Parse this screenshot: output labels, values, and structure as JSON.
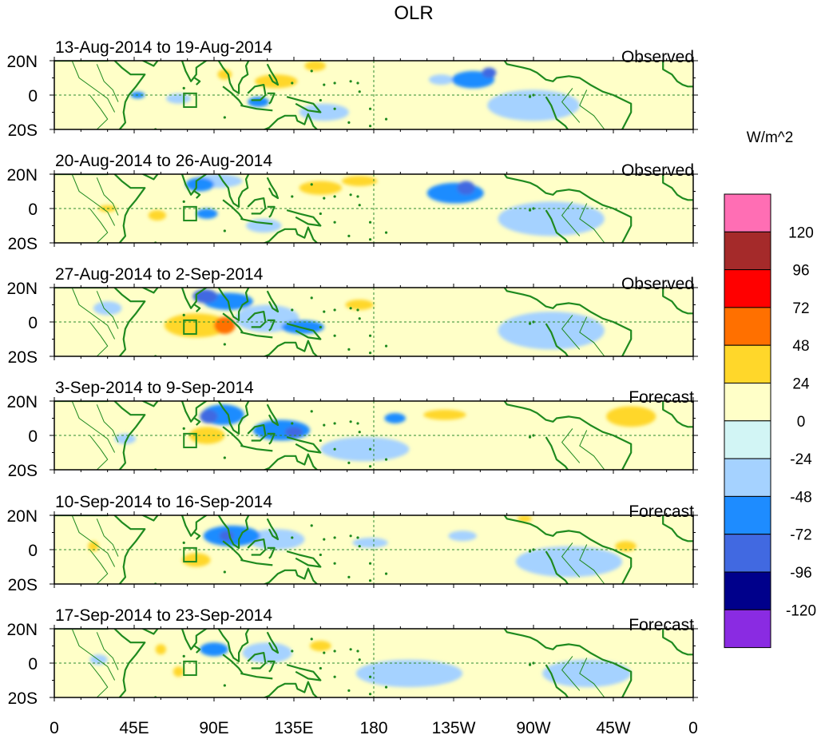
{
  "chart_data": {
    "type": "heatmap",
    "title": "OLR",
    "units_label": "W/m^2",
    "x_ticks": [
      "0",
      "45E",
      "90E",
      "135E",
      "180",
      "135W",
      "90W",
      "45W",
      "0"
    ],
    "y_ticks": [
      "20N",
      "0",
      "20S"
    ],
    "lat_range": [
      -20,
      20
    ],
    "lon_range": [
      0,
      360
    ],
    "colorbar": {
      "labels": [
        "120",
        "96",
        "72",
        "48",
        "24",
        "0",
        "-24",
        "-48",
        "-72",
        "-96",
        "-120"
      ],
      "colors": [
        "#ff6eb4",
        "#a52a2a",
        "#ff0000",
        "#ff7000",
        "#ffd72a",
        "#ffffc8",
        "#d2f5f5",
        "#a5d2ff",
        "#1e8cff",
        "#4169e1",
        "#00008b",
        "#8a2be2"
      ]
    },
    "panels": [
      {
        "period": "13-Aug-2014 to 19-Aug-2014",
        "kind": "Observed",
        "anomalies": [
          {
            "lon": 125,
            "lat": 8,
            "rx": 12,
            "ry": 4,
            "v": 24
          },
          {
            "lon": 96,
            "lat": 12,
            "rx": 4,
            "ry": 3,
            "v": 24
          },
          {
            "lon": 147,
            "lat": 17,
            "rx": 6,
            "ry": 3,
            "v": 24
          },
          {
            "lon": 245,
            "lat": 13,
            "rx": 4,
            "ry": 3,
            "v": -72
          },
          {
            "lon": 236,
            "lat": 9,
            "rx": 12,
            "ry": 5,
            "v": -48
          },
          {
            "lon": 218,
            "lat": 9,
            "rx": 7,
            "ry": 3,
            "v": -24
          },
          {
            "lon": 47,
            "lat": 0,
            "rx": 4,
            "ry": 2,
            "v": -48
          },
          {
            "lon": 70,
            "lat": -2,
            "rx": 7,
            "ry": 3,
            "v": -24
          },
          {
            "lon": 115,
            "lat": -4,
            "rx": 6,
            "ry": 3,
            "v": -48
          },
          {
            "lon": 152,
            "lat": -10,
            "rx": 14,
            "ry": 5,
            "v": -24
          },
          {
            "lon": 270,
            "lat": -6,
            "rx": 26,
            "ry": 9,
            "v": -24
          }
        ]
      },
      {
        "period": "20-Aug-2014 to 26-Aug-2014",
        "kind": "Observed",
        "anomalies": [
          {
            "lon": 82,
            "lat": 14,
            "rx": 8,
            "ry": 4,
            "v": -48
          },
          {
            "lon": 92,
            "lat": 16,
            "rx": 14,
            "ry": 4,
            "v": -24
          },
          {
            "lon": 232,
            "lat": 12,
            "rx": 5,
            "ry": 4,
            "v": -72
          },
          {
            "lon": 226,
            "lat": 9,
            "rx": 16,
            "ry": 6,
            "v": -48
          },
          {
            "lon": 150,
            "lat": 12,
            "rx": 12,
            "ry": 4,
            "v": 24
          },
          {
            "lon": 172,
            "lat": 16,
            "rx": 10,
            "ry": 3,
            "v": 24
          },
          {
            "lon": 30,
            "lat": 0,
            "rx": 5,
            "ry": 2,
            "v": 24
          },
          {
            "lon": 58,
            "lat": -4,
            "rx": 5,
            "ry": 3,
            "v": 24
          },
          {
            "lon": 86,
            "lat": -3,
            "rx": 6,
            "ry": 3,
            "v": -48
          },
          {
            "lon": 118,
            "lat": -10,
            "rx": 10,
            "ry": 4,
            "v": -24
          },
          {
            "lon": 280,
            "lat": -6,
            "rx": 30,
            "ry": 10,
            "v": -24
          }
        ]
      },
      {
        "period": "27-Aug-2014 to 2-Sep-2014",
        "kind": "Observed",
        "anomalies": [
          {
            "lon": 80,
            "lat": -2,
            "rx": 18,
            "ry": 7,
            "v": 24
          },
          {
            "lon": 96,
            "lat": -2,
            "rx": 6,
            "ry": 5,
            "v": 48
          },
          {
            "lon": 85,
            "lat": 15,
            "rx": 7,
            "ry": 4,
            "v": -72
          },
          {
            "lon": 98,
            "lat": 12,
            "rx": 14,
            "ry": 5,
            "v": -48
          },
          {
            "lon": 140,
            "lat": -3,
            "rx": 12,
            "ry": 4,
            "v": -48
          },
          {
            "lon": 120,
            "lat": 2,
            "rx": 18,
            "ry": 8,
            "v": -24
          },
          {
            "lon": 172,
            "lat": 10,
            "rx": 8,
            "ry": 3,
            "v": 24
          },
          {
            "lon": 280,
            "lat": -5,
            "rx": 30,
            "ry": 11,
            "v": -24
          },
          {
            "lon": 30,
            "lat": 8,
            "rx": 8,
            "ry": 4,
            "v": -24
          }
        ]
      },
      {
        "period": "3-Sep-2014 to 9-Sep-2014",
        "kind": "Forecast",
        "anomalies": [
          {
            "lon": 87,
            "lat": 11,
            "rx": 5,
            "ry": 4,
            "v": -72
          },
          {
            "lon": 95,
            "lat": 12,
            "rx": 12,
            "ry": 6,
            "v": -48
          },
          {
            "lon": 135,
            "lat": 2,
            "rx": 5,
            "ry": 3,
            "v": -72
          },
          {
            "lon": 128,
            "lat": 3,
            "rx": 16,
            "ry": 6,
            "v": -48
          },
          {
            "lon": 86,
            "lat": 0,
            "rx": 10,
            "ry": 5,
            "v": 24
          },
          {
            "lon": 220,
            "lat": 12,
            "rx": 12,
            "ry": 3,
            "v": 24
          },
          {
            "lon": 325,
            "lat": 11,
            "rx": 14,
            "ry": 6,
            "v": 24
          },
          {
            "lon": 192,
            "lat": 10,
            "rx": 6,
            "ry": 3,
            "v": -48
          },
          {
            "lon": 40,
            "lat": -2,
            "rx": 6,
            "ry": 3,
            "v": -24
          },
          {
            "lon": 175,
            "lat": -8,
            "rx": 25,
            "ry": 7,
            "v": -24
          }
        ]
      },
      {
        "period": "10-Sep-2014 to 16-Sep-2014",
        "kind": "Forecast",
        "anomalies": [
          {
            "lon": 97,
            "lat": 8,
            "rx": 4,
            "ry": 3,
            "v": -72
          },
          {
            "lon": 100,
            "lat": 8,
            "rx": 16,
            "ry": 6,
            "v": -48
          },
          {
            "lon": 125,
            "lat": 6,
            "rx": 16,
            "ry": 6,
            "v": -24
          },
          {
            "lon": 80,
            "lat": -6,
            "rx": 8,
            "ry": 4,
            "v": 24
          },
          {
            "lon": 22,
            "lat": 2,
            "rx": 3,
            "ry": 3,
            "v": 24
          },
          {
            "lon": 265,
            "lat": 18,
            "rx": 4,
            "ry": 2,
            "v": 24
          },
          {
            "lon": 322,
            "lat": 2,
            "rx": 6,
            "ry": 3,
            "v": 24
          },
          {
            "lon": 230,
            "lat": 8,
            "rx": 8,
            "ry": 3,
            "v": -24
          },
          {
            "lon": 178,
            "lat": 4,
            "rx": 10,
            "ry": 3,
            "v": -24
          },
          {
            "lon": 290,
            "lat": -7,
            "rx": 30,
            "ry": 9,
            "v": -24
          }
        ]
      },
      {
        "period": "17-Sep-2014 to 23-Sep-2014",
        "kind": "Forecast",
        "anomalies": [
          {
            "lon": 90,
            "lat": 8,
            "rx": 8,
            "ry": 4,
            "v": -48
          },
          {
            "lon": 120,
            "lat": 6,
            "rx": 14,
            "ry": 6,
            "v": -24
          },
          {
            "lon": 60,
            "lat": 8,
            "rx": 3,
            "ry": 3,
            "v": 24
          },
          {
            "lon": 70,
            "lat": -5,
            "rx": 3,
            "ry": 3,
            "v": 24
          },
          {
            "lon": 150,
            "lat": 10,
            "rx": 6,
            "ry": 3,
            "v": 24
          },
          {
            "lon": 25,
            "lat": 2,
            "rx": 5,
            "ry": 3,
            "v": -24
          },
          {
            "lon": 200,
            "lat": -6,
            "rx": 30,
            "ry": 8,
            "v": -24
          },
          {
            "lon": 300,
            "lat": -6,
            "rx": 25,
            "ry": 8,
            "v": -24
          }
        ]
      }
    ]
  }
}
